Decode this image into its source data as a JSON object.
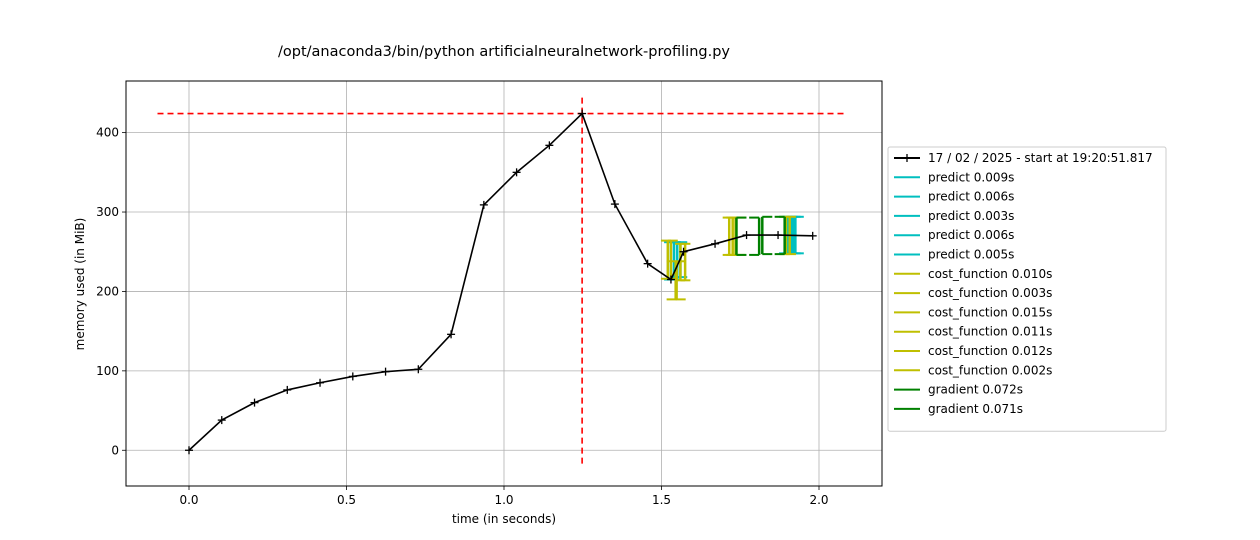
{
  "chart_data": {
    "type": "line",
    "title": "/opt/anaconda3/bin/python artificialneuralnetwork-profiling.py",
    "xlabel": "time (in seconds)",
    "ylabel": "memory used (in MiB)",
    "xlim": [
      -0.2,
      2.2
    ],
    "ylim": [
      -45,
      465
    ],
    "xticks": [
      0.0,
      0.5,
      1.0,
      1.5,
      2.0
    ],
    "xtick_labels": [
      "0.0",
      "0.5",
      "1.0",
      "1.5",
      "2.0"
    ],
    "yticks": [
      0,
      100,
      200,
      300,
      400
    ],
    "ytick_labels": [
      "0",
      "100",
      "200",
      "300",
      "400"
    ],
    "grid": true,
    "legend_position": "outside-right",
    "memory_series": {
      "name": "17 / 02 / 2025 - start at 19:20:51.817",
      "color": "#000000",
      "x": [
        0.0,
        0.104,
        0.208,
        0.312,
        0.416,
        0.52,
        0.624,
        0.728,
        0.832,
        0.936,
        1.04,
        1.144,
        1.248,
        1.352,
        1.456,
        1.53,
        1.57,
        1.67,
        1.77,
        1.87,
        1.98
      ],
      "y": [
        0,
        38,
        60,
        76,
        85,
        93,
        99,
        102,
        146,
        309,
        350,
        384,
        424,
        310,
        235,
        215,
        250,
        260,
        271,
        271,
        270
      ]
    },
    "peak_marker": {
      "x": 1.248,
      "y": 424,
      "color": "#ff0000"
    },
    "brackets": [
      {
        "label": "predict 0.009s",
        "color": "#00bfbf",
        "t0": 1.53,
        "t1": 1.54,
        "y0": 215,
        "y1": 262
      },
      {
        "label": "predict 0.006s",
        "color": "#00bfbf",
        "t0": 1.55,
        "t1": 1.56,
        "y0": 218,
        "y1": 262
      },
      {
        "label": "predict 0.003s",
        "color": "#00bfbf",
        "t0": 1.9,
        "t1": 1.905,
        "y0": 248,
        "y1": 294
      },
      {
        "label": "predict 0.006s",
        "color": "#00bfbf",
        "t0": 1.91,
        "t1": 1.916,
        "y0": 248,
        "y1": 294
      },
      {
        "label": "predict 0.005s",
        "color": "#00bfbf",
        "t0": 1.92,
        "t1": 1.925,
        "y0": 248,
        "y1": 294
      },
      {
        "label": "cost_function 0.010s",
        "color": "#bfbf00",
        "t0": 1.52,
        "t1": 1.53,
        "y0": 216,
        "y1": 264
      },
      {
        "label": "cost_function 0.003s",
        "color": "#bfbf00",
        "t0": 1.545,
        "t1": 1.548,
        "y0": 190,
        "y1": 238
      },
      {
        "label": "cost_function 0.015s",
        "color": "#bfbf00",
        "t0": 1.56,
        "t1": 1.575,
        "y0": 214,
        "y1": 260
      },
      {
        "label": "cost_function 0.011s",
        "color": "#bfbf00",
        "t0": 1.715,
        "t1": 1.726,
        "y0": 246,
        "y1": 293
      },
      {
        "label": "cost_function 0.012s",
        "color": "#bfbf00",
        "t0": 1.895,
        "t1": 1.907,
        "y0": 247,
        "y1": 294
      },
      {
        "label": "cost_function 0.002s",
        "color": "#bfbf00",
        "t0": 1.735,
        "t1": 1.737,
        "y0": 246,
        "y1": 293
      },
      {
        "label": "gradient 0.072s",
        "color": "#008000",
        "t0": 1.738,
        "t1": 1.81,
        "y0": 246,
        "y1": 293
      },
      {
        "label": "gradient 0.071s",
        "color": "#008000",
        "t0": 1.82,
        "t1": 1.891,
        "y0": 247,
        "y1": 294
      }
    ]
  }
}
